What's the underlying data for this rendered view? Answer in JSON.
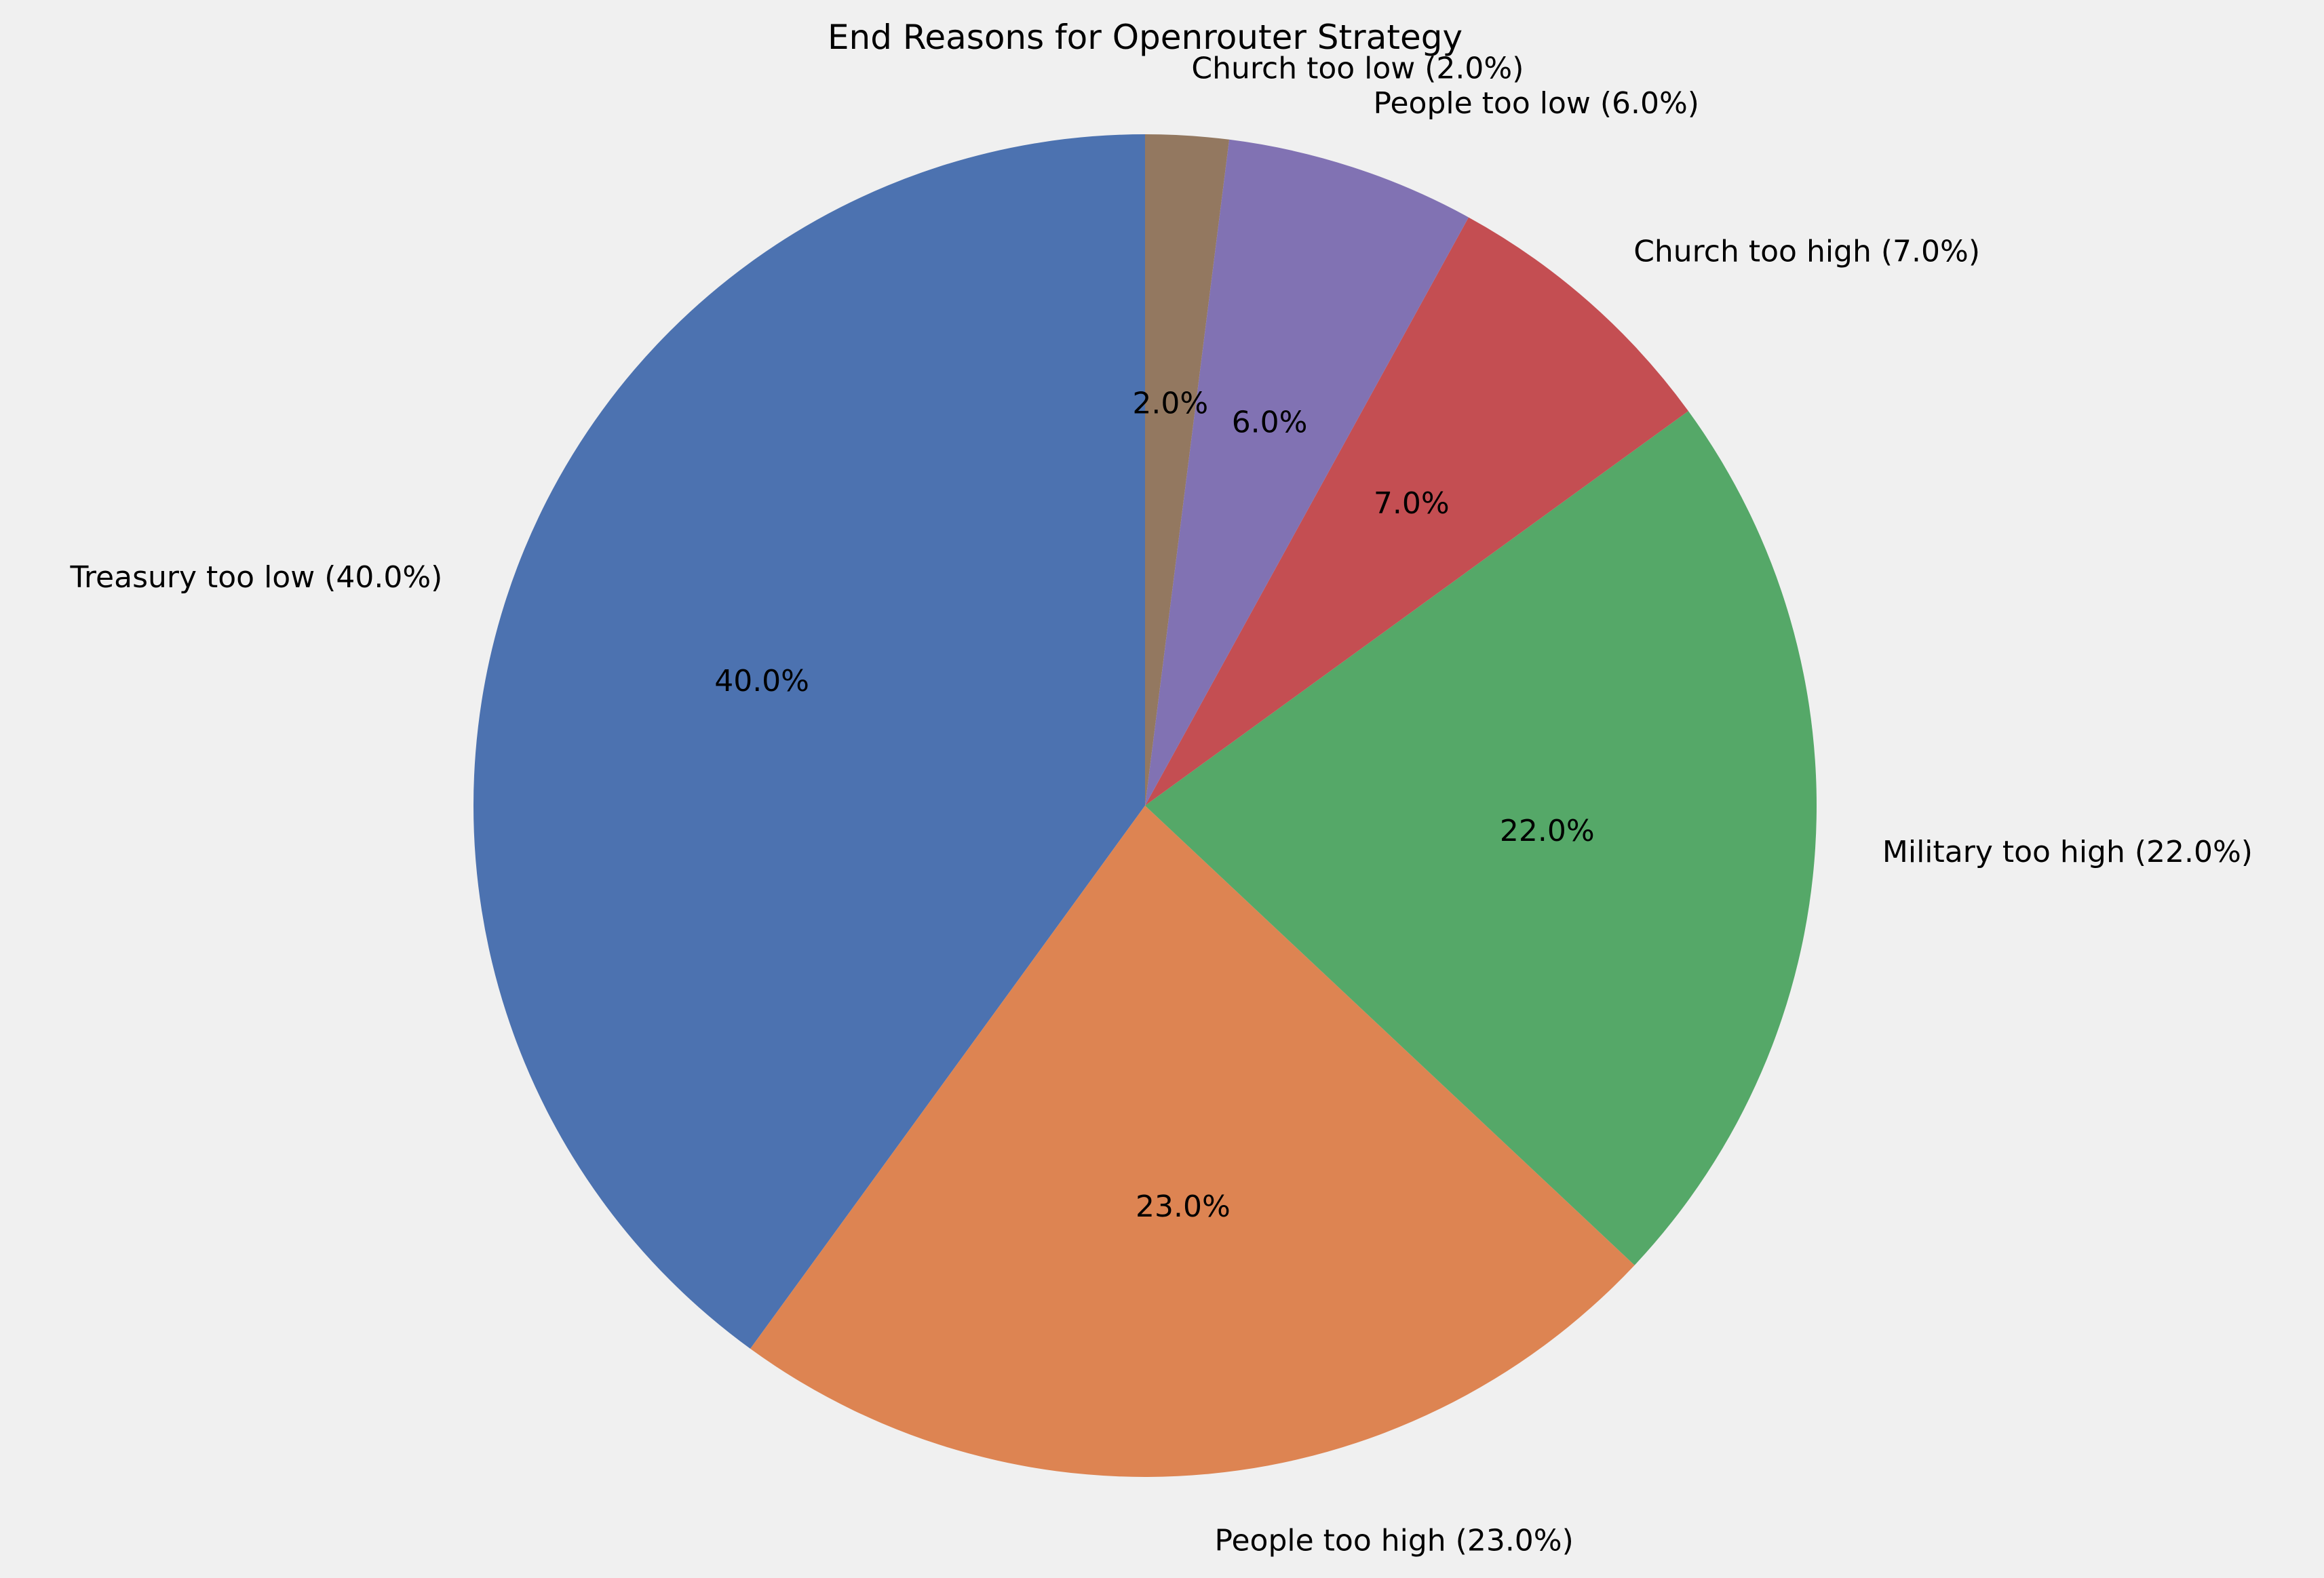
{
  "chart_data": {
    "type": "pie",
    "title": "End Reasons for Openrouter Strategy",
    "slices": [
      {
        "label": "Treasury too low (40.0%)",
        "value": 40.0,
        "pct_label": "40.0%",
        "color": "#4c72b0"
      },
      {
        "label": "People too high (23.0%)",
        "value": 23.0,
        "pct_label": "23.0%",
        "color": "#dd8452"
      },
      {
        "label": "Military too high (22.0%)",
        "value": 22.0,
        "pct_label": "22.0%",
        "color": "#55a868"
      },
      {
        "label": "Church too high (7.0%)",
        "value": 7.0,
        "pct_label": "7.0%",
        "color": "#c44e52"
      },
      {
        "label": "People too low (6.0%)",
        "value": 6.0,
        "pct_label": "6.0%",
        "color": "#8172b3"
      },
      {
        "label": "Church too low (2.0%)",
        "value": 2.0,
        "pct_label": "2.0%",
        "color": "#937860"
      }
    ],
    "start_angle_deg": 90,
    "direction": "counterclockwise"
  }
}
